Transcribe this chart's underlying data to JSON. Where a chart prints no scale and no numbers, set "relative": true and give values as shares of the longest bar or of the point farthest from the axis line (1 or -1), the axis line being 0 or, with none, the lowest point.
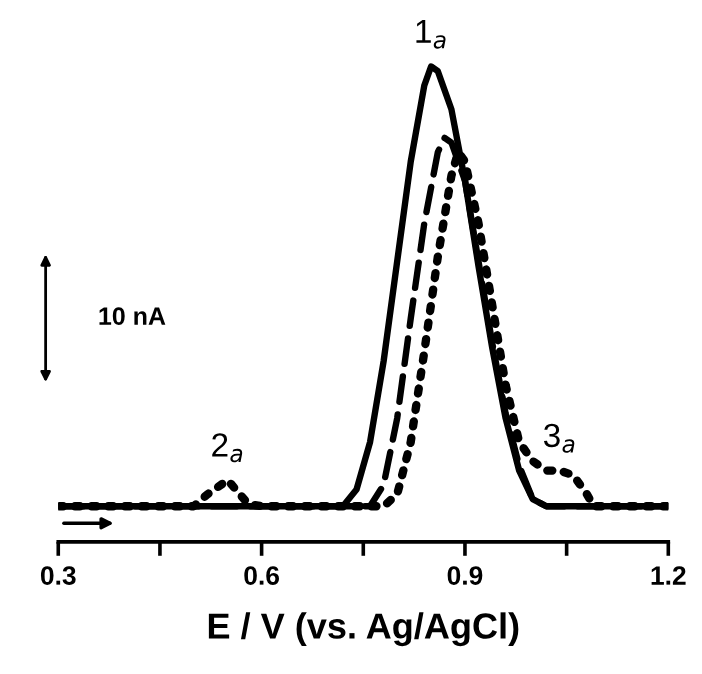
{
  "chart_data": {
    "type": "line",
    "xlabel": "E / V (vs. Ag/AgCl)",
    "relative": true,
    "xlim": [
      0.3,
      1.2
    ],
    "xticks": [
      0.3,
      {
        "value": 0.45,
        "label": null
      },
      0.6,
      {
        "value": 0.75,
        "label": null
      },
      0.9,
      {
        "value": 1.05,
        "label": null
      },
      1.2
    ],
    "tick_labels": "x",
    "grid": false,
    "legend": false,
    "marker": "none",
    "series": [
      {
        "color": "#000000",
        "line_style": "solid",
        "x": [
          0.3,
          0.72,
          0.74,
          0.76,
          0.78,
          0.8,
          0.82,
          0.84,
          0.85,
          0.86,
          0.88,
          0.9,
          0.92,
          0.94,
          0.96,
          0.98,
          1.0,
          1.02,
          1.2
        ],
        "values": [
          0.075,
          0.075,
          0.11,
          0.21,
          0.38,
          0.59,
          0.8,
          0.96,
          1.0,
          0.99,
          0.91,
          0.76,
          0.58,
          0.41,
          0.26,
          0.15,
          0.09,
          0.075,
          0.075
        ]
      },
      {
        "color": "#000000",
        "line_style": "dashed",
        "x": [
          0.3,
          0.76,
          0.78,
          0.8,
          0.82,
          0.84,
          0.86,
          0.87,
          0.88,
          0.9,
          0.92,
          0.94,
          0.96,
          0.98,
          1.0,
          1.02,
          1.2
        ],
        "values": [
          0.075,
          0.075,
          0.12,
          0.26,
          0.47,
          0.67,
          0.82,
          0.85,
          0.84,
          0.76,
          0.59,
          0.42,
          0.27,
          0.16,
          0.09,
          0.075,
          0.075
        ]
      },
      {
        "color": "#000000",
        "line_style": "dotted",
        "x": [
          0.3,
          0.5,
          0.52,
          0.55,
          0.58,
          0.6,
          0.78,
          0.8,
          0.82,
          0.84,
          0.86,
          0.88,
          0.89,
          0.9,
          0.92,
          0.94,
          0.96,
          0.98,
          1.0,
          1.02,
          1.04,
          1.06,
          1.08,
          1.09,
          1.2
        ],
        "values": [
          0.075,
          0.075,
          0.1,
          0.13,
          0.08,
          0.075,
          0.075,
          0.1,
          0.21,
          0.4,
          0.6,
          0.77,
          0.82,
          0.8,
          0.67,
          0.5,
          0.33,
          0.21,
          0.17,
          0.15,
          0.15,
          0.14,
          0.1,
          0.075,
          0.075
        ]
      }
    ],
    "annotations": [
      {
        "text": "1$_{a}$",
        "x": 0.85,
        "y": 1.0
      },
      {
        "text": "2$_{a}$",
        "x": 0.55,
        "y": 0.13
      },
      {
        "text": "3$_{a}$",
        "x": 1.04,
        "y": 0.15
      },
      "10 nA"
    ]
  }
}
